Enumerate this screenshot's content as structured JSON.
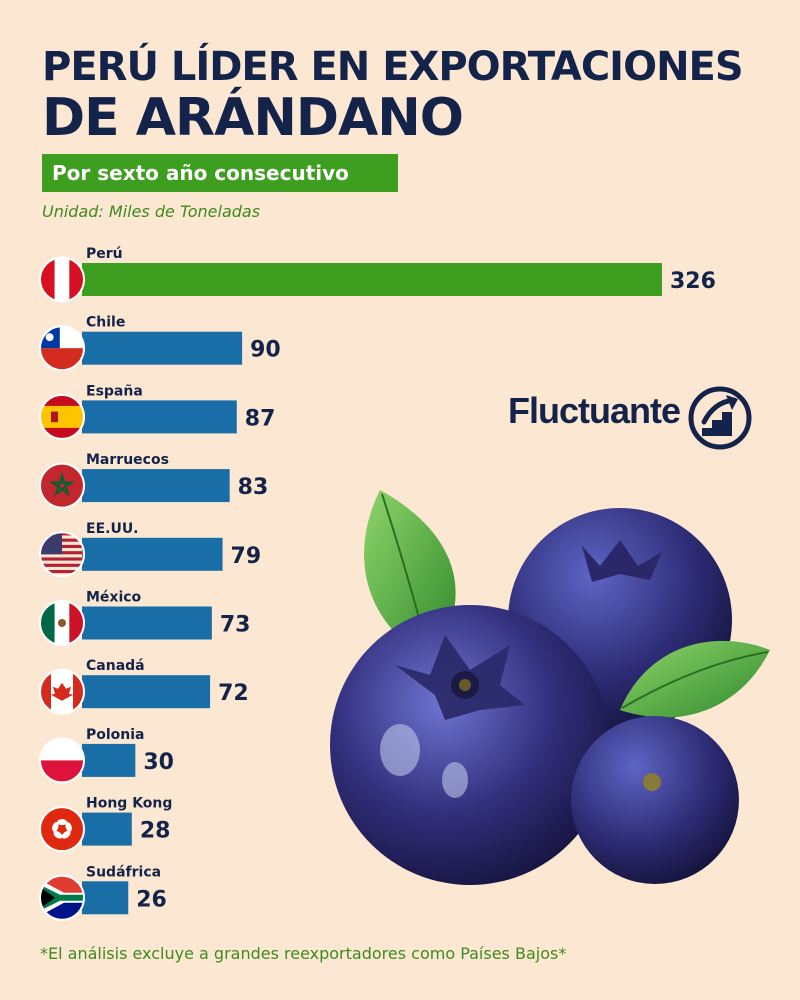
{
  "header": {
    "title_line1": "PERÚ LÍDER EN EXPORTACIONES",
    "title_line2": "DE ARÁNDANO",
    "subtitle": "Por sexto año consecutivo",
    "unit": "Unidad: Miles de Toneladas"
  },
  "brand": {
    "name": "Fluctuante",
    "icon": "chart-arrow-up-icon"
  },
  "footnote": "*El análisis excluye a grandes reexportadores como Países Bajos*",
  "colors": {
    "highlight": "#3e9e1f",
    "bar": "#1a6ea8",
    "text": "#13234a",
    "background": "#fce8d2"
  },
  "chart_data": {
    "type": "bar",
    "orientation": "horizontal",
    "categories": [
      "Perú",
      "Chile",
      "España",
      "Marruecos",
      "EE.UU.",
      "México",
      "Canadá",
      "Polonia",
      "Hong Kong",
      "Sudáfrica"
    ],
    "values": [
      326,
      90,
      87,
      83,
      79,
      73,
      72,
      30,
      28,
      26
    ],
    "highlight": "Perú",
    "flags": [
      "peru-flag-icon",
      "chile-flag-icon",
      "spain-flag-icon",
      "morocco-flag-icon",
      "usa-flag-icon",
      "mexico-flag-icon",
      "canada-flag-icon",
      "poland-flag-icon",
      "hong-kong-flag-icon",
      "south-africa-flag-icon"
    ],
    "ylabel": "Unidad: Miles de Toneladas",
    "xlim": [
      0,
      326
    ],
    "grid": false,
    "legend": "none"
  }
}
